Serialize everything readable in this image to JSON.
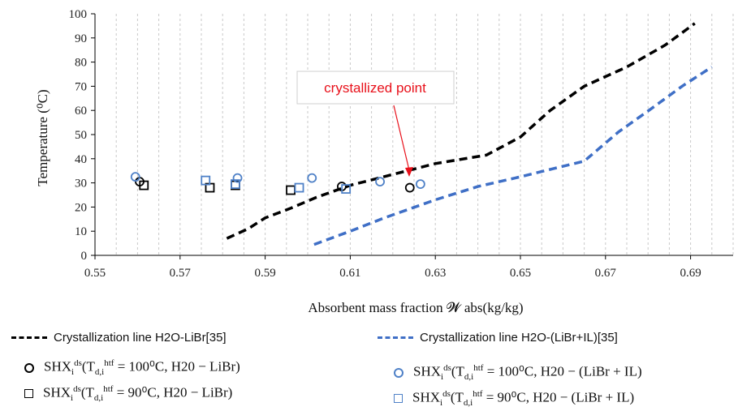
{
  "chart_data": {
    "type": "scatter",
    "xlabel": "Absorbent mass fraction 𝓦 abs(kg/kg)",
    "ylabel": "Temperature (⁰C)",
    "xlim": [
      0.55,
      0.7
    ],
    "ylim": [
      0,
      100
    ],
    "x_ticks": [
      "0.55",
      "0.57",
      "0.59",
      "0.61",
      "0.63",
      "0.65",
      "0.67",
      "0.69"
    ],
    "y_ticks": [
      "0",
      "10",
      "20",
      "30",
      "40",
      "50",
      "60",
      "70",
      "80",
      "90",
      "100"
    ],
    "grid": "vertical dashed",
    "annotation": {
      "text": "crystallized point",
      "x": 0.6225,
      "y": 32
    },
    "series": [
      {
        "name": "Crystallization line H2O-LiBr[35]",
        "kind": "line",
        "style": "dashed",
        "color": "#000000",
        "points": [
          [
            0.581,
            7
          ],
          [
            0.586,
            11
          ],
          [
            0.59,
            15.5
          ],
          [
            0.596,
            19.5
          ],
          [
            0.602,
            24
          ],
          [
            0.61,
            29
          ],
          [
            0.62,
            33.5
          ],
          [
            0.63,
            38
          ],
          [
            0.642,
            41.5
          ],
          [
            0.65,
            49
          ],
          [
            0.657,
            60
          ],
          [
            0.665,
            70
          ],
          [
            0.675,
            78
          ],
          [
            0.684,
            87
          ],
          [
            0.691,
            96
          ]
        ]
      },
      {
        "name": "Crystallization line H2O-(LiBr+IL)[35]",
        "kind": "line",
        "style": "dashed",
        "color": "#3f6fc6",
        "points": [
          [
            0.6015,
            4.5
          ],
          [
            0.61,
            10
          ],
          [
            0.618,
            15.5
          ],
          [
            0.63,
            23
          ],
          [
            0.64,
            28.5
          ],
          [
            0.65,
            32.5
          ],
          [
            0.658,
            36
          ],
          [
            0.665,
            39
          ],
          [
            0.673,
            51
          ],
          [
            0.681,
            61
          ],
          [
            0.688,
            70
          ],
          [
            0.695,
            78
          ]
        ]
      },
      {
        "name": "SHX_i^ds(T_d,i^htf = 100⁰C, H20 − LiBr)",
        "kind": "marker",
        "marker": "circle",
        "color": "#000000",
        "points": [
          [
            0.5605,
            30.5
          ],
          [
            0.608,
            28.5
          ],
          [
            0.624,
            28
          ]
        ]
      },
      {
        "name": "SHX_i^ds(T_d,i^htf = 90⁰C, H20 − LiBr)",
        "kind": "marker",
        "marker": "square",
        "color": "#000000",
        "points": [
          [
            0.5615,
            29
          ],
          [
            0.577,
            28
          ],
          [
            0.583,
            29
          ],
          [
            0.596,
            27
          ]
        ]
      },
      {
        "name": "SHX_i^ds(T_d,i^htf = 100⁰C, H20 − (LiBr + IL)",
        "kind": "marker",
        "marker": "circle",
        "color": "#4f81c7",
        "points": [
          [
            0.5595,
            32.5
          ],
          [
            0.5835,
            32
          ],
          [
            0.601,
            32
          ],
          [
            0.617,
            30.5
          ],
          [
            0.6265,
            29.5
          ]
        ]
      },
      {
        "name": "SHX_i^ds(T_d,i^htf = 90⁰C, H20 − (LiBr + IL)",
        "kind": "marker",
        "marker": "square",
        "color": "#4f81c7",
        "points": [
          [
            0.576,
            31
          ],
          [
            0.583,
            29.5
          ],
          [
            0.598,
            28
          ],
          [
            0.609,
            27.5
          ]
        ]
      }
    ]
  },
  "legend": {
    "line1": "Crystallization line H2O-LiBr[35]",
    "line2": "Crystallization line H2O-(LiBr+IL)[35]",
    "m1": {
      "shx": "SHX",
      "sub": "i",
      "sup": "ds",
      "T": "(T",
      "tsub": "d,i",
      "tsup": "htf",
      "rest": " = 100⁰C, H20 − LiBr)"
    },
    "m2": {
      "shx": "SHX",
      "sub": "i",
      "sup": "ds",
      "T": "(T",
      "tsub": "d,i",
      "tsup": "htf",
      "rest": " = 90⁰C, H20 − LiBr)"
    },
    "m3": {
      "shx": "SHX",
      "sub": "i",
      "sup": "ds",
      "T": "(T",
      "tsub": "d,i",
      "tsup": "htf",
      "rest": " = 100⁰C, H20 − (LiBr + IL)"
    },
    "m4": {
      "shx": "SHX",
      "sub": "i",
      "sup": "ds",
      "T": "(T",
      "tsub": "d,i",
      "tsup": "htf",
      "rest": " = 90⁰C, H20 − (LiBr + IL)"
    }
  }
}
